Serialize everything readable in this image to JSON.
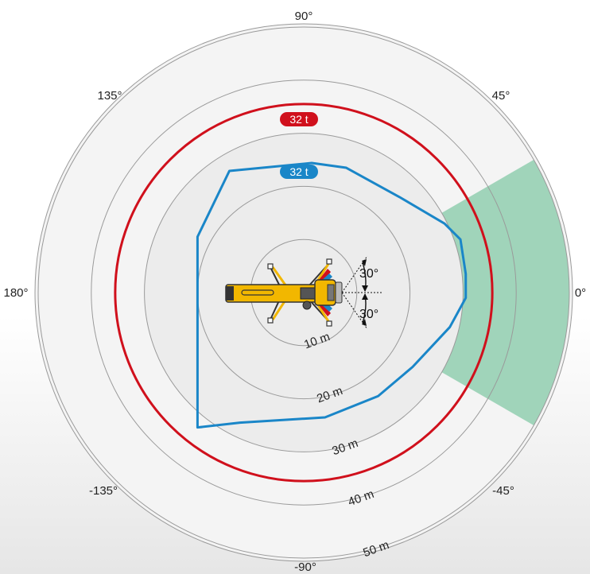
{
  "chart": {
    "rings": [
      {
        "radius_m": 10,
        "label": "10 m"
      },
      {
        "radius_m": 20,
        "label": "20 m"
      },
      {
        "radius_m": 30,
        "label": "30 m"
      },
      {
        "radius_m": 40,
        "label": "40 m"
      },
      {
        "radius_m": 50,
        "label": "50 m"
      }
    ],
    "angle_labels": [
      {
        "deg": 90,
        "label": "90°"
      },
      {
        "deg": 45,
        "label": "45°"
      },
      {
        "deg": 0,
        "label": "0°"
      },
      {
        "deg": -45,
        "label": "-45°"
      },
      {
        "deg": -90,
        "label": "-90°"
      },
      {
        "deg": -135,
        "label": "-135°"
      },
      {
        "deg": 180,
        "label": "180°"
      },
      {
        "deg": 135,
        "label": "135°"
      }
    ],
    "load_curves": [
      {
        "name": "red-32t",
        "label": "32 t",
        "color": "#d0101c",
        "shape": "circle",
        "radius_m": 35.5
      },
      {
        "name": "blue-32t",
        "label": "32 t",
        "color": "#1a86c8",
        "shape": "polygon",
        "points_m": [
          [
            1.5,
            24.4
          ],
          [
            -14.0,
            22.9
          ],
          [
            -20.0,
            10.5
          ],
          [
            -20.0,
            -8.0
          ],
          [
            -20.0,
            -25.4
          ],
          [
            -12.0,
            -24.5
          ],
          [
            4.0,
            -23.5
          ],
          [
            14.0,
            -19.5
          ],
          [
            20.5,
            -14.0
          ],
          [
            27.5,
            -6.5
          ],
          [
            30.5,
            -1.0
          ],
          [
            30.5,
            3.5
          ],
          [
            29.5,
            10.0
          ],
          [
            26.5,
            13.0
          ],
          [
            18.0,
            18.0
          ],
          [
            8.0,
            23.5
          ]
        ]
      }
    ],
    "sector": {
      "color": "#5bb98b",
      "from_deg": -30,
      "to_deg": 30,
      "inner_radius_m": 7,
      "outer_radius_m": 50,
      "upper_label": "30°",
      "lower_label": "30°"
    },
    "crane": {
      "body_color": "#f2b700",
      "detail_color": "#333333",
      "accent_colors": [
        "#d0101c",
        "#1a86c8"
      ]
    }
  }
}
